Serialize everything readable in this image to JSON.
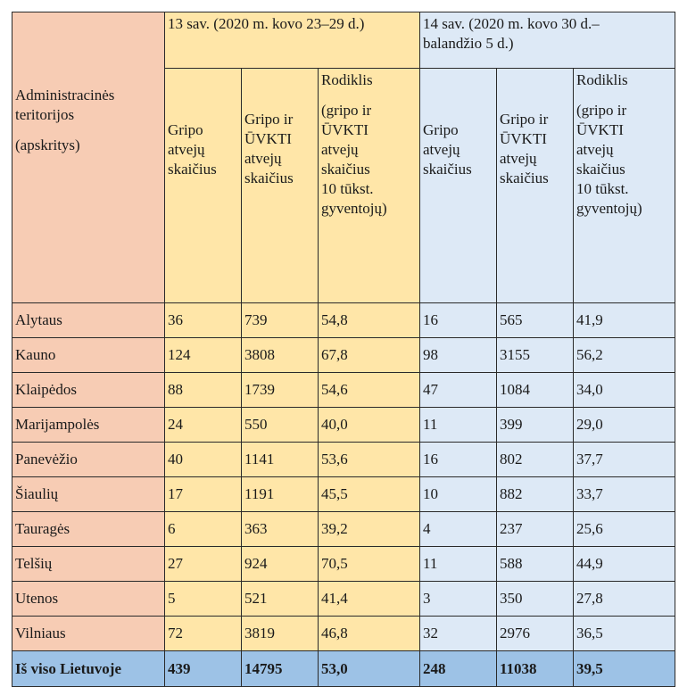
{
  "header": {
    "region_col": [
      "Administracinės",
      "teritorijos",
      "(apskritys)"
    ],
    "week13_title": "13 sav. (2020 m. kovo 23–29 d.)",
    "week14_title": [
      "14 sav. (2020 m. kovo 30 d.–",
      "balandžio 5 d.)"
    ],
    "col_flu": [
      "Gripo",
      "atvejų",
      "skaičius"
    ],
    "col_flu_ari": [
      "Gripo ir",
      "ŪVKTI",
      "atvejų",
      "skaičius"
    ],
    "col_rate_title": "Rodiklis",
    "col_rate_desc": [
      "(gripo ir",
      "ŪVKTI",
      "atvejų",
      "skaičius",
      "10 tūkst.",
      "gyventojų)"
    ]
  },
  "rows": [
    {
      "region": "Alytaus",
      "w13": [
        "36",
        "739",
        "54,8"
      ],
      "w14": [
        "16",
        "565",
        "41,9"
      ]
    },
    {
      "region": "Kauno",
      "w13": [
        "124",
        "3808",
        "67,8"
      ],
      "w14": [
        "98",
        "3155",
        "56,2"
      ]
    },
    {
      "region": "Klaipėdos",
      "w13": [
        "88",
        "1739",
        "54,6"
      ],
      "w14": [
        "47",
        "1084",
        "34,0"
      ]
    },
    {
      "region": "Marijampolės",
      "w13": [
        "24",
        "550",
        "40,0"
      ],
      "w14": [
        "11",
        "399",
        "29,0"
      ]
    },
    {
      "region": "Panevėžio",
      "w13": [
        "40",
        "1141",
        "53,6"
      ],
      "w14": [
        "16",
        "802",
        "37,7"
      ]
    },
    {
      "region": "Šiaulių",
      "w13": [
        "17",
        "1191",
        "45,5"
      ],
      "w14": [
        "10",
        "882",
        "33,7"
      ]
    },
    {
      "region": "Tauragės",
      "w13": [
        "6",
        "363",
        "39,2"
      ],
      "w14": [
        "4",
        "237",
        "25,6"
      ]
    },
    {
      "region": "Telšių",
      "w13": [
        "27",
        "924",
        "70,5"
      ],
      "w14": [
        "11",
        "588",
        "44,9"
      ]
    },
    {
      "region": "Utenos",
      "w13": [
        "5",
        "521",
        "41,4"
      ],
      "w14": [
        "3",
        "350",
        "27,8"
      ]
    },
    {
      "region": "Vilniaus",
      "w13": [
        "72",
        "3819",
        "46,8"
      ],
      "w14": [
        "32",
        "2976",
        "36,5"
      ]
    }
  ],
  "total": {
    "region": "Iš viso Lietuvoje",
    "w13": [
      "439",
      "14795",
      "53,0"
    ],
    "w14": [
      "248",
      "11038",
      "39,5"
    ]
  },
  "colors": {
    "region": "#f7ccb4",
    "week13": "#ffe6a8",
    "week14": "#dde9f6",
    "total": "#9dc2e6"
  }
}
